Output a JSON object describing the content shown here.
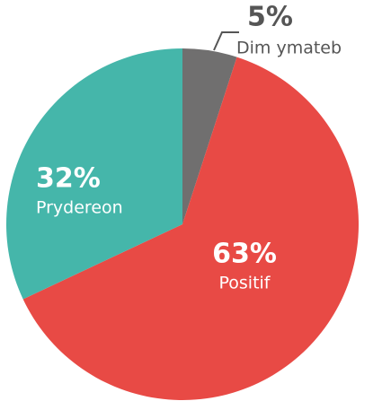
{
  "chart_data": {
    "type": "pie",
    "categories": [
      "Dim ymateb",
      "Positif",
      "Prydereon"
    ],
    "values": [
      5,
      63,
      32
    ],
    "value_labels": [
      "5%",
      "63%",
      "32%"
    ],
    "colors": [
      "#706f6f",
      "#e84a45",
      "#45b6aa"
    ]
  }
}
